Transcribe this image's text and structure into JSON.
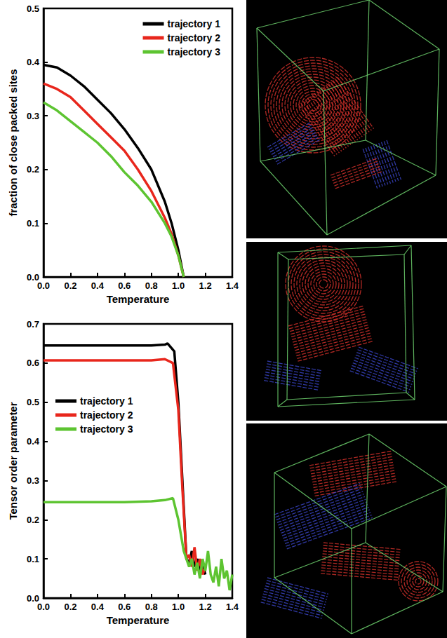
{
  "chart_data": [
    {
      "type": "line",
      "y_label": "fraction of close packed sites",
      "x_label": "Temperature",
      "xlim": [
        0,
        1.4
      ],
      "xticks": [
        {
          "value": 0,
          "label": "0.0"
        },
        0.2,
        0.4,
        0.6,
        0.8,
        {
          "value": 1,
          "label": "1.0"
        },
        1.2,
        1.4
      ],
      "ylim": [
        0,
        0.5
      ],
      "yticks": [
        {
          "value": 0,
          "label": "0.0"
        },
        0.1,
        0.2,
        0.3,
        0.4,
        0.5
      ],
      "grid": false,
      "legend": "upper right",
      "series": [
        {
          "name": "trajectory 1",
          "color": "#000000",
          "x": [
            0,
            0.1,
            0.2,
            0.3,
            0.4,
            0.5,
            0.6,
            0.7,
            0.8,
            0.9,
            0.95,
            1.0,
            1.04
          ],
          "values": [
            0.395,
            0.39,
            0.375,
            0.355,
            0.33,
            0.305,
            0.275,
            0.24,
            0.2,
            0.14,
            0.1,
            0.05,
            0.0
          ]
        },
        {
          "name": "trajectory 2",
          "color": "#e8261c",
          "x": [
            0,
            0.1,
            0.2,
            0.3,
            0.4,
            0.5,
            0.6,
            0.7,
            0.8,
            0.9,
            0.95,
            1.0,
            1.04
          ],
          "values": [
            0.36,
            0.35,
            0.335,
            0.31,
            0.285,
            0.26,
            0.235,
            0.2,
            0.16,
            0.11,
            0.08,
            0.04,
            0.0
          ]
        },
        {
          "name": "trajectory 3",
          "color": "#5dc431",
          "x": [
            0,
            0.1,
            0.2,
            0.3,
            0.4,
            0.5,
            0.6,
            0.7,
            0.8,
            0.9,
            0.95,
            1.0,
            1.04
          ],
          "values": [
            0.325,
            0.31,
            0.29,
            0.27,
            0.25,
            0.225,
            0.195,
            0.17,
            0.14,
            0.1,
            0.075,
            0.04,
            0.0
          ]
        }
      ]
    },
    {
      "type": "line",
      "y_label": "Tensor order parameter",
      "x_label": "Temperature",
      "xlim": [
        0,
        1.4
      ],
      "xticks": [
        {
          "value": 0,
          "label": "0.0"
        },
        0.2,
        0.4,
        0.6,
        0.8,
        {
          "value": 1,
          "label": "1.0"
        },
        1.2,
        1.4
      ],
      "ylim": [
        0,
        0.7
      ],
      "yticks": [
        {
          "value": 0,
          "label": "0.0"
        },
        0.1,
        0.2,
        0.3,
        0.4,
        0.5,
        0.6,
        0.7
      ],
      "grid": false,
      "legend": "center left",
      "series": [
        {
          "name": "trajectory 1",
          "color": "#000000",
          "x": [
            0,
            0.2,
            0.4,
            0.6,
            0.8,
            0.9,
            0.92,
            0.97,
            1.0,
            1.03,
            1.06,
            1.08,
            1.1,
            1.12,
            1.14,
            1.16,
            1.18,
            1.2
          ],
          "values": [
            0.645,
            0.645,
            0.645,
            0.645,
            0.645,
            0.647,
            0.65,
            0.63,
            0.5,
            0.3,
            0.1,
            0.09,
            0.12,
            0.08,
            0.1,
            0.07,
            0.09,
            0.06
          ]
        },
        {
          "name": "trajectory 2",
          "color": "#e8261c",
          "x": [
            0,
            0.2,
            0.4,
            0.6,
            0.8,
            0.9,
            0.96,
            1.0,
            1.03,
            1.06,
            1.08,
            1.1,
            1.12,
            1.14,
            1.16,
            1.18,
            1.2
          ],
          "values": [
            0.607,
            0.607,
            0.607,
            0.607,
            0.607,
            0.61,
            0.6,
            0.48,
            0.28,
            0.1,
            0.11,
            0.08,
            0.13,
            0.07,
            0.1,
            0.06,
            0.08
          ]
        },
        {
          "name": "trajectory 3",
          "color": "#5dc431",
          "x": [
            0,
            0.2,
            0.4,
            0.6,
            0.8,
            0.9,
            0.96,
            1.0,
            1.04,
            1.08,
            1.1,
            1.12,
            1.14,
            1.16,
            1.18,
            1.2,
            1.22,
            1.24,
            1.26,
            1.28,
            1.3,
            1.32,
            1.34,
            1.36,
            1.38,
            1.4
          ],
          "values": [
            0.245,
            0.245,
            0.245,
            0.245,
            0.247,
            0.25,
            0.255,
            0.2,
            0.12,
            0.08,
            0.1,
            0.06,
            0.09,
            0.05,
            0.1,
            0.07,
            0.12,
            0.06,
            0.04,
            0.08,
            0.03,
            0.1,
            0.05,
            0.07,
            0.02,
            0.06
          ]
        }
      ]
    }
  ]
}
